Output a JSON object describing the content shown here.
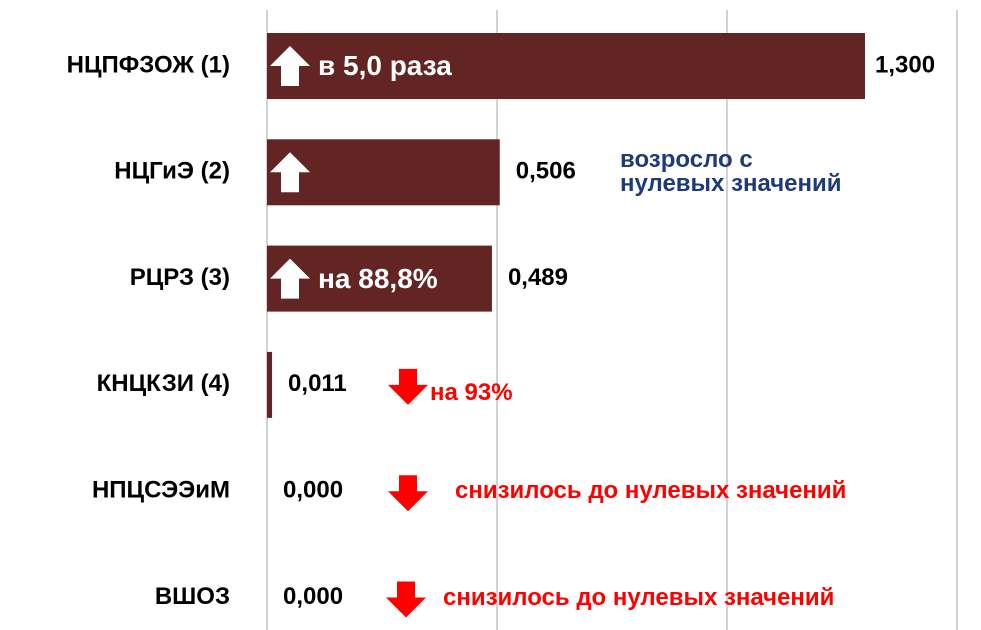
{
  "chart_data": {
    "type": "bar",
    "orientation": "horizontal",
    "categories": [
      "НЦПФЗОЖ (1)",
      "НЦГиЭ (2)",
      "РЦРЗ (3)",
      "КНЦКЗИ (4)",
      "НПЦСЭЭиМ",
      "ВШОЗ"
    ],
    "values": [
      1.3,
      0.506,
      0.489,
      0.011,
      0,
      0
    ],
    "value_labels": [
      "1,300",
      "0,506",
      "0,489",
      "0,011",
      "0,000",
      "0,000"
    ],
    "color": "#632523",
    "xlim": [
      0,
      1.5
    ],
    "xticks": [
      0,
      0.5,
      1,
      1.5
    ],
    "grid": true,
    "arrows": [
      "up",
      "up",
      "up",
      "down",
      "down",
      "down"
    ],
    "arrow_colors": [
      "#ffffff",
      "#ffffff",
      "#ffffff",
      "#ff0000",
      "#ff0000",
      "#ff0000"
    ],
    "annotations": [
      "в 5,0 раза",
      "возросло с\nнулевых значений",
      "на 88,8%",
      "на 93%",
      "снизилось до нулевых значений",
      "снизилось до нулевых значений"
    ],
    "annotation_colors": [
      "#ffffff",
      "#1f3a7a",
      "#ffffff",
      "#ff0000",
      "#ff0000",
      "#ff0000"
    ]
  }
}
